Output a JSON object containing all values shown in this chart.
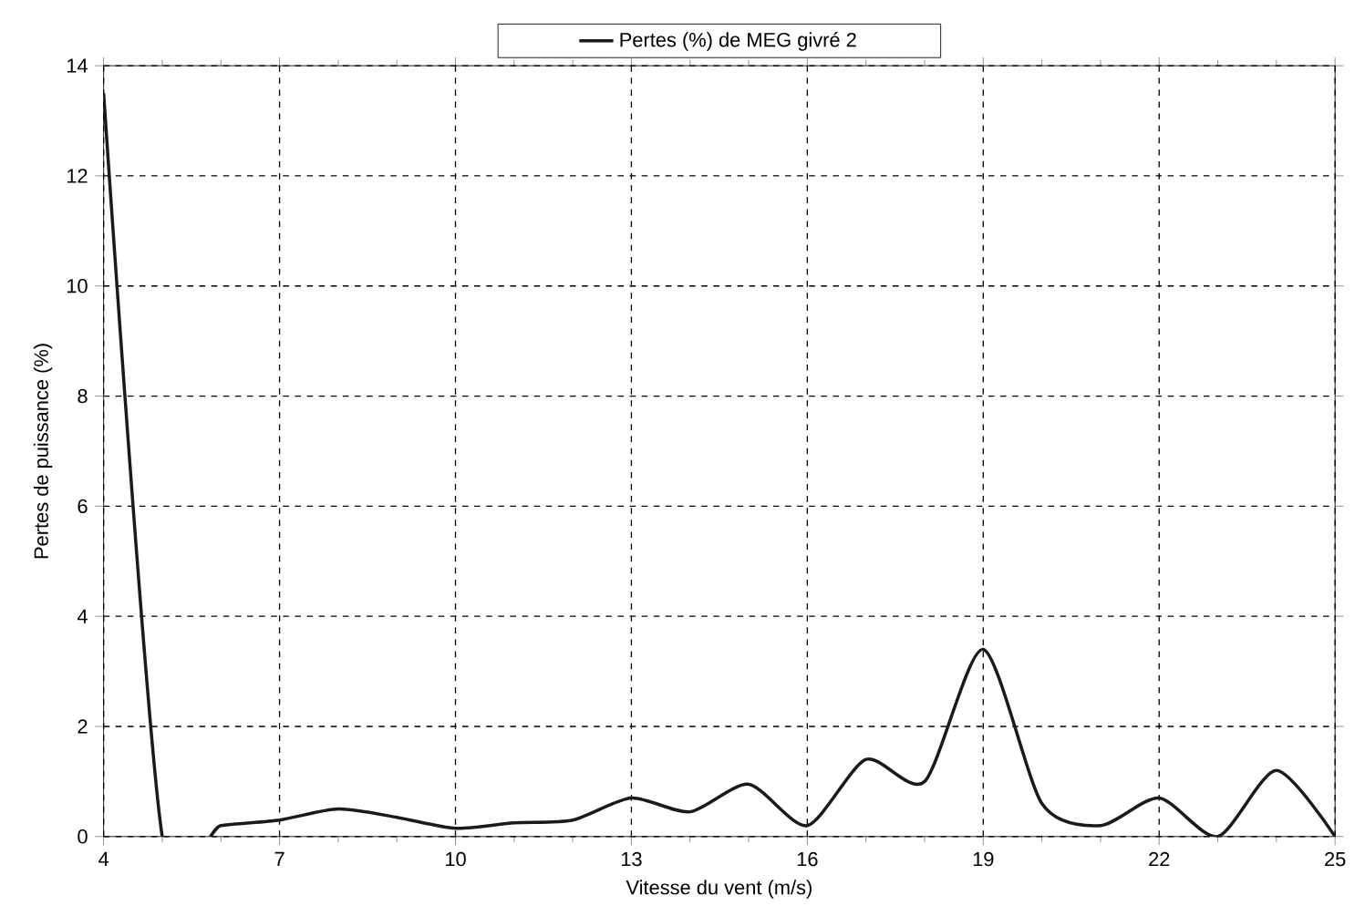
{
  "chart_data": {
    "type": "line",
    "xlabel": "Vitesse du vent (m/s)",
    "ylabel": "Pertes de puissance (%)",
    "x": [
      4,
      5,
      6,
      7,
      8,
      9,
      10,
      11,
      12,
      13,
      14,
      15,
      16,
      17,
      18,
      19,
      20,
      21,
      22,
      23,
      24,
      25
    ],
    "series": [
      {
        "name": "Pertes (%) de MEG givré 2",
        "color": "#1a1a1a",
        "values": [
          13.5,
          0,
          0.2,
          0.3,
          0.5,
          0.35,
          0.15,
          0.25,
          0.3,
          0.7,
          0.45,
          0.95,
          0.2,
          1.4,
          1.0,
          3.4,
          0.6,
          0.2,
          0.7,
          0,
          1.2,
          0
        ]
      }
    ],
    "xlim": [
      4,
      25
    ],
    "ylim": [
      0,
      14
    ],
    "xticks": [
      4,
      {
        "value": 5,
        "label": null
      },
      {
        "value": 6,
        "label": null
      },
      7,
      {
        "value": 8,
        "label": null
      },
      {
        "value": 9,
        "label": null
      },
      10,
      {
        "value": 11,
        "label": null
      },
      {
        "value": 12,
        "label": null
      },
      13,
      {
        "value": 14,
        "label": null
      },
      {
        "value": 15,
        "label": null
      },
      16,
      {
        "value": 17,
        "label": null
      },
      {
        "value": 18,
        "label": null
      },
      19,
      {
        "value": 20,
        "label": null
      },
      {
        "value": 21,
        "label": null
      },
      22,
      {
        "value": 23,
        "label": null
      },
      {
        "value": 24,
        "label": null
      },
      25
    ],
    "yticks": [
      0,
      2,
      4,
      6,
      8,
      10,
      12,
      14
    ],
    "grid": true,
    "legend": "top",
    "marker": "none",
    "line_style": "solid"
  }
}
